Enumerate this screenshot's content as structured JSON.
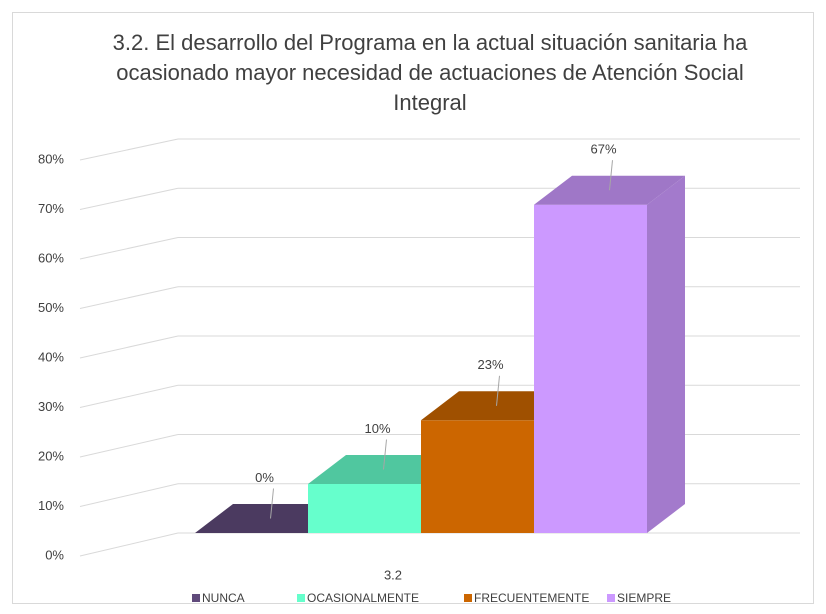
{
  "chart_data": {
    "type": "bar3d",
    "title": "3.2. El desarrollo del Programa en la actual situación sanitaria ha ocasionado mayor necesidad de actuaciones de Atención Social Integral",
    "categories": [
      "3.2"
    ],
    "series": [
      {
        "name": "NUNCA",
        "color": "#604a7b",
        "values": [
          0
        ],
        "value_labels": [
          "0%"
        ]
      },
      {
        "name": "OCASIONALMENTE",
        "color": "#66ffcc",
        "values": [
          10
        ],
        "value_labels": [
          "10%"
        ]
      },
      {
        "name": "FRECUENTEMENTE",
        "color": "#cc6600",
        "values": [
          23
        ],
        "value_labels": [
          "23%"
        ]
      },
      {
        "name": "SIEMPRE",
        "color": "#cc99ff",
        "values": [
          67
        ],
        "value_labels": [
          "67%"
        ]
      }
    ],
    "ylim": [
      0,
      80
    ],
    "yticks": [
      {
        "value": 0,
        "label": "0%"
      },
      {
        "value": 10,
        "label": "10%"
      },
      {
        "value": 20,
        "label": "20%"
      },
      {
        "value": 30,
        "label": "30%"
      },
      {
        "value": 40,
        "label": "40%"
      },
      {
        "value": 50,
        "label": "50%"
      },
      {
        "value": 60,
        "label": "60%"
      },
      {
        "value": 70,
        "label": "70%"
      },
      {
        "value": 80,
        "label": "80%"
      }
    ],
    "grid": true,
    "legend": "bottom"
  }
}
